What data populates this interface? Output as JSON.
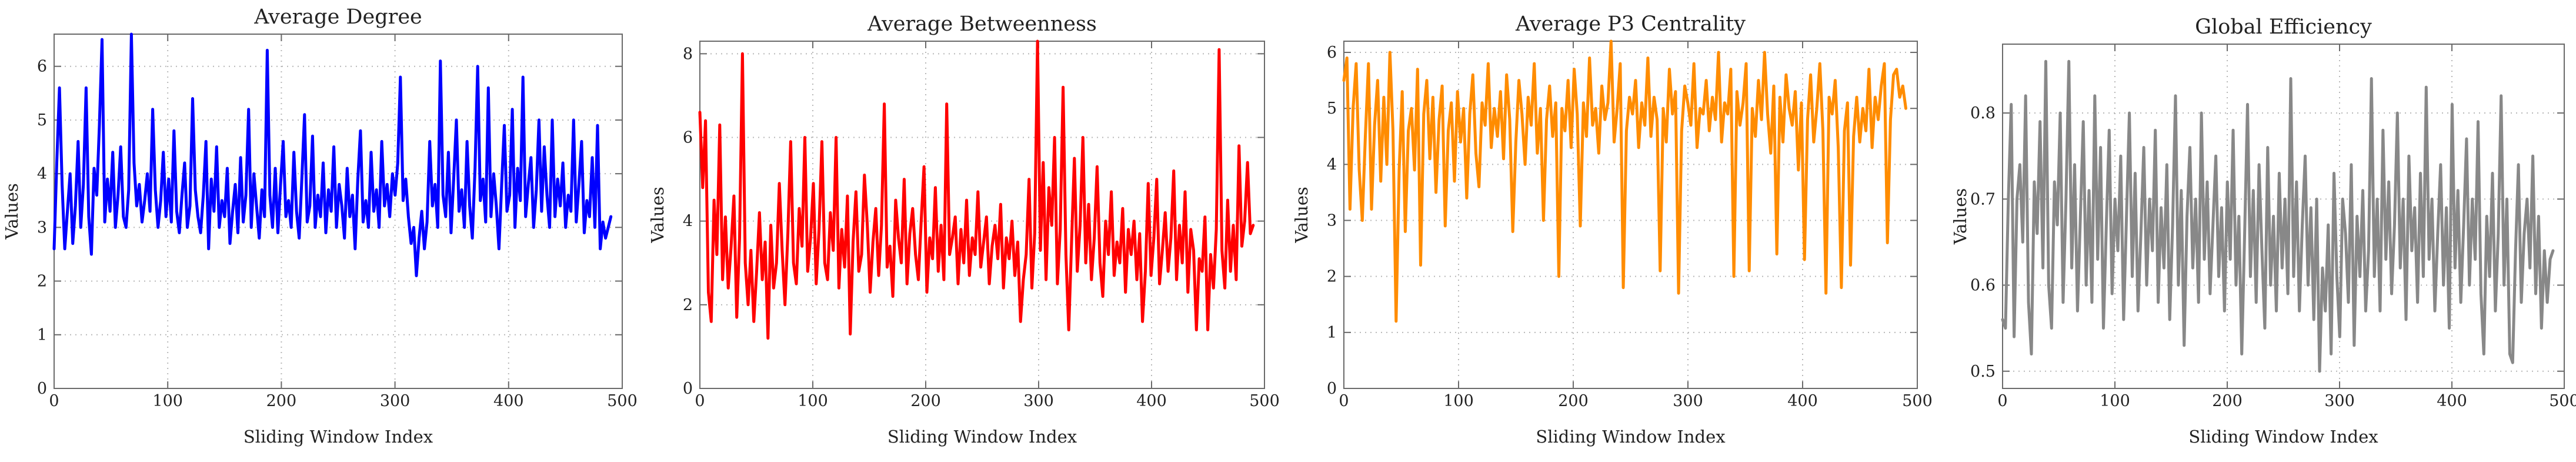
{
  "chart_data": [
    {
      "type": "line",
      "title": "Average Degree",
      "xlabel": "Sliding Window Index",
      "ylabel": "Values",
      "xlim": [
        0,
        500
      ],
      "ylim": [
        0,
        6.6
      ],
      "xticks": [
        0,
        100,
        200,
        300,
        400,
        500
      ],
      "yticks": [
        0,
        1,
        2,
        3,
        4,
        5,
        6
      ],
      "grid": true,
      "color": "#0000ff",
      "series": [
        {
          "values": [
            2.6,
            4.2,
            5.6,
            3.8,
            2.6,
            3.3,
            4.0,
            2.7,
            3.4,
            4.6,
            3.0,
            3.8,
            5.6,
            3.2,
            2.5,
            4.1,
            3.6,
            4.9,
            6.5,
            3.1,
            3.9,
            3.3,
            4.4,
            3.0,
            3.6,
            4.5,
            3.2,
            3.0,
            3.7,
            6.6,
            4.2,
            3.4,
            3.8,
            3.1,
            3.5,
            4.0,
            3.3,
            5.2,
            3.7,
            3.0,
            3.5,
            4.4,
            3.2,
            3.9,
            3.1,
            4.8,
            3.3,
            2.9,
            3.6,
            4.2,
            3.0,
            3.4,
            5.4,
            3.7,
            3.2,
            2.9,
            3.6,
            4.6,
            2.6,
            3.9,
            3.3,
            4.5,
            3.0,
            3.5,
            3.2,
            4.1,
            2.7,
            3.3,
            3.8,
            2.9,
            4.3,
            3.1,
            3.6,
            5.2,
            3.0,
            4.0,
            3.4,
            2.8,
            3.7,
            3.2,
            6.3,
            3.6,
            3.0,
            4.1,
            2.9,
            3.8,
            4.6,
            3.2,
            3.5,
            3.0,
            4.4,
            3.3,
            2.8,
            3.9,
            5.1,
            3.1,
            3.4,
            4.7,
            3.0,
            3.6,
            3.2,
            4.2,
            2.9,
            3.7,
            3.3,
            4.5,
            3.0,
            3.8,
            3.4,
            2.8,
            4.1,
            3.2,
            3.6,
            2.6,
            3.9,
            4.8,
            3.1,
            3.5,
            3.0,
            4.4,
            3.3,
            3.7,
            3.0,
            4.6,
            3.4,
            3.8,
            3.2,
            4.0,
            3.6,
            4.2,
            5.8,
            3.5,
            3.9,
            3.2,
            2.7,
            3.0,
            2.1,
            2.8,
            3.3,
            2.6,
            3.1,
            4.6,
            3.4,
            3.8,
            3.0,
            6.1,
            3.6,
            3.2,
            4.4,
            2.9,
            3.9,
            5.0,
            3.3,
            3.7,
            3.0,
            4.6,
            3.4,
            2.8,
            4.1,
            6.0,
            3.5,
            3.9,
            3.1,
            5.6,
            3.2,
            4.0,
            3.4,
            2.6,
            3.8,
            4.9,
            3.3,
            3.6,
            5.2,
            3.0,
            4.1,
            3.5,
            5.8,
            3.2,
            3.8,
            4.3,
            3.0,
            3.7,
            5.0,
            3.3,
            4.5,
            3.6,
            3.0,
            5.0,
            3.2,
            3.9,
            3.4,
            4.2,
            3.0,
            3.6,
            3.3,
            5.0,
            3.1,
            3.8,
            4.6,
            2.9,
            3.5,
            3.2,
            4.3,
            3.0,
            4.9,
            2.6,
            3.1,
            2.8,
            3.0,
            3.2
          ],
          "name": ""
        }
      ]
    },
    {
      "type": "line",
      "title": "Average Betweenness",
      "xlabel": "Sliding Window Index",
      "ylabel": "Values",
      "xlim": [
        0,
        500
      ],
      "ylim": [
        0,
        8.3
      ],
      "xticks": [
        0,
        100,
        200,
        300,
        400,
        500
      ],
      "yticks": [
        0,
        2,
        4,
        6,
        8
      ],
      "grid": true,
      "color": "#ff0000",
      "series": [
        {
          "values": [
            6.6,
            4.8,
            6.4,
            2.3,
            1.6,
            4.5,
            3.2,
            6.3,
            2.6,
            4.1,
            2.4,
            3.4,
            4.6,
            1.7,
            3.6,
            8.0,
            3.0,
            2.0,
            3.3,
            1.6,
            2.8,
            4.2,
            2.6,
            3.5,
            1.2,
            3.9,
            2.4,
            3.0,
            4.9,
            3.3,
            2.0,
            3.7,
            5.9,
            3.0,
            2.5,
            4.3,
            3.4,
            6.0,
            2.8,
            3.6,
            4.9,
            2.5,
            3.8,
            5.9,
            3.0,
            2.6,
            4.2,
            3.3,
            6.0,
            2.4,
            3.8,
            2.9,
            4.6,
            1.3,
            3.5,
            4.7,
            2.8,
            3.2,
            5.1,
            3.9,
            2.3,
            3.5,
            4.3,
            2.7,
            3.9,
            6.8,
            2.9,
            3.4,
            2.2,
            4.5,
            3.6,
            3.0,
            5.0,
            2.5,
            3.7,
            4.3,
            3.2,
            2.6,
            4.0,
            5.3,
            2.3,
            3.6,
            3.1,
            4.8,
            2.8,
            3.9,
            2.6,
            6.8,
            3.2,
            3.6,
            4.1,
            2.5,
            3.8,
            3.0,
            4.5,
            2.7,
            3.6,
            3.2,
            4.7,
            2.9,
            3.5,
            4.1,
            2.5,
            3.4,
            3.9,
            3.1,
            4.4,
            2.4,
            3.6,
            3.1,
            4.0,
            2.7,
            3.5,
            1.6,
            2.6,
            3.2,
            5.0,
            2.4,
            3.7,
            8.3,
            3.3,
            5.4,
            2.6,
            4.8,
            3.9,
            6.0,
            2.5,
            3.8,
            7.2,
            3.2,
            1.4,
            3.5,
            5.5,
            2.8,
            3.9,
            6.0,
            3.0,
            4.4,
            2.6,
            3.6,
            5.3,
            3.0,
            2.2,
            4.0,
            3.2,
            4.7,
            2.7,
            3.5,
            3.0,
            4.3,
            2.3,
            3.8,
            3.2,
            4.0,
            2.6,
            3.7,
            1.6,
            2.8,
            4.9,
            2.7,
            3.6,
            5.0,
            2.5,
            3.3,
            4.2,
            2.8,
            3.6,
            5.2,
            2.6,
            3.9,
            3.0,
            4.7,
            2.3,
            3.8,
            3.3,
            1.4,
            3.1,
            2.8,
            4.1,
            1.4,
            3.2,
            2.4,
            3.8,
            8.1,
            3.3,
            2.4,
            4.5,
            2.8,
            3.9,
            2.6,
            5.8,
            3.4,
            4.0,
            5.4,
            3.7,
            3.9
          ],
          "name": ""
        }
      ]
    },
    {
      "type": "line",
      "title": "Average P3 Centrality",
      "xlabel": "Sliding Window Index",
      "ylabel": "Values",
      "xlim": [
        0,
        500
      ],
      "ylim": [
        0,
        6.2
      ],
      "xticks": [
        0,
        100,
        200,
        300,
        400,
        500
      ],
      "yticks": [
        0,
        1,
        2,
        3,
        4,
        5,
        6
      ],
      "grid": true,
      "color": "#ff8c00",
      "series": [
        {
          "values": [
            5.5,
            5.9,
            3.2,
            5.0,
            5.8,
            3.9,
            3.0,
            4.5,
            5.8,
            3.2,
            4.7,
            5.5,
            3.7,
            5.2,
            4.0,
            6.0,
            4.6,
            1.2,
            3.9,
            5.3,
            2.8,
            4.6,
            5.0,
            3.9,
            5.7,
            2.2,
            4.9,
            5.5,
            4.1,
            5.2,
            3.5,
            4.8,
            5.4,
            2.9,
            4.6,
            5.1,
            3.7,
            5.3,
            4.4,
            5.0,
            3.4,
            4.9,
            5.6,
            4.2,
            3.6,
            5.1,
            4.7,
            5.8,
            4.3,
            5.0,
            4.5,
            5.3,
            4.1,
            5.6,
            4.8,
            2.8,
            4.4,
            5.5,
            4.9,
            4.0,
            5.2,
            4.7,
            5.8,
            4.2,
            5.0,
            3.0,
            4.8,
            5.4,
            4.5,
            5.1,
            2.0,
            5.0,
            4.6,
            5.5,
            4.3,
            5.7,
            4.9,
            2.9,
            5.1,
            4.5,
            5.9,
            4.7,
            5.0,
            4.2,
            5.4,
            4.8,
            5.1,
            6.2,
            4.4,
            5.0,
            5.8,
            1.8,
            4.6,
            5.2,
            4.9,
            5.5,
            4.3,
            5.1,
            4.7,
            5.9,
            4.5,
            5.2,
            4.8,
            2.1,
            5.0,
            4.4,
            5.7,
            4.9,
            5.3,
            1.7,
            4.6,
            5.4,
            5.1,
            4.7,
            5.8,
            4.3,
            5.0,
            4.9,
            5.5,
            4.6,
            5.2,
            4.8,
            6.0,
            4.4,
            5.1,
            4.9,
            5.7,
            2.0,
            5.3,
            4.7,
            5.1,
            5.8,
            2.1,
            5.0,
            4.5,
            5.5,
            4.8,
            6.0,
            4.9,
            4.2,
            5.4,
            2.4,
            5.2,
            4.4,
            5.6,
            5.0,
            4.7,
            5.3,
            3.9,
            5.1,
            2.3,
            4.8,
            5.6,
            4.4,
            5.0,
            5.8,
            4.6,
            1.7,
            5.2,
            4.9,
            5.5,
            4.3,
            1.8,
            4.6,
            5.1,
            2.2,
            4.5,
            5.2,
            4.4,
            5.0,
            4.6,
            5.7,
            4.3,
            5.2,
            4.8,
            5.4,
            5.8,
            2.6,
            4.8,
            5.6,
            5.7,
            5.2,
            5.4,
            5.0
          ],
          "name": ""
        }
      ]
    },
    {
      "type": "line",
      "title": "Global Efficiency",
      "xlabel": "Sliding Window Index",
      "ylabel": "Values",
      "xlim": [
        0,
        500
      ],
      "ylim": [
        0.48,
        0.88
      ],
      "xticks": [
        0,
        100,
        200,
        300,
        400,
        500
      ],
      "yticks": [
        0.5,
        0.6,
        0.7,
        0.8
      ],
      "grid": true,
      "color": "#888888",
      "series": [
        {
          "values": [
            0.56,
            0.55,
            0.7,
            0.81,
            0.54,
            0.7,
            0.74,
            0.65,
            0.82,
            0.58,
            0.52,
            0.72,
            0.66,
            0.79,
            0.62,
            0.86,
            0.6,
            0.55,
            0.72,
            0.67,
            0.8,
            0.58,
            0.7,
            0.86,
            0.62,
            0.74,
            0.57,
            0.68,
            0.79,
            0.6,
            0.71,
            0.58,
            0.82,
            0.63,
            0.76,
            0.55,
            0.67,
            0.78,
            0.59,
            0.7,
            0.64,
            0.75,
            0.56,
            0.68,
            0.8,
            0.61,
            0.73,
            0.57,
            0.66,
            0.76,
            0.6,
            0.7,
            0.64,
            0.78,
            0.58,
            0.69,
            0.62,
            0.74,
            0.56,
            0.67,
            0.82,
            0.6,
            0.71,
            0.53,
            0.68,
            0.76,
            0.62,
            0.7,
            0.58,
            0.8,
            0.63,
            0.72,
            0.59,
            0.67,
            0.75,
            0.61,
            0.69,
            0.57,
            0.72,
            0.63,
            0.78,
            0.6,
            0.68,
            0.52,
            0.66,
            0.81,
            0.61,
            0.71,
            0.58,
            0.74,
            0.64,
            0.55,
            0.76,
            0.6,
            0.68,
            0.57,
            0.73,
            0.62,
            0.7,
            0.59,
            0.84,
            0.61,
            0.72,
            0.57,
            0.67,
            0.75,
            0.6,
            0.69,
            0.56,
            0.7,
            0.5,
            0.62,
            0.57,
            0.67,
            0.52,
            0.73,
            0.61,
            0.54,
            0.7,
            0.66,
            0.58,
            0.74,
            0.53,
            0.68,
            0.61,
            0.71,
            0.57,
            0.64,
            0.84,
            0.61,
            0.7,
            0.57,
            0.78,
            0.63,
            0.72,
            0.59,
            0.67,
            0.8,
            0.62,
            0.7,
            0.56,
            0.75,
            0.64,
            0.69,
            0.58,
            0.73,
            0.61,
            0.83,
            0.63,
            0.7,
            0.57,
            0.66,
            0.74,
            0.6,
            0.69,
            0.55,
            0.81,
            0.62,
            0.71,
            0.58,
            0.67,
            0.77,
            0.6,
            0.7,
            0.63,
            0.79,
            0.59,
            0.52,
            0.68,
            0.61,
            0.73,
            0.57,
            0.66,
            0.82,
            0.6,
            0.7,
            0.52,
            0.51,
            0.64,
            0.74,
            0.58,
            0.66,
            0.7,
            0.62,
            0.75,
            0.59,
            0.68,
            0.55,
            0.64,
            0.58,
            0.63,
            0.64
          ],
          "name": ""
        }
      ]
    }
  ]
}
